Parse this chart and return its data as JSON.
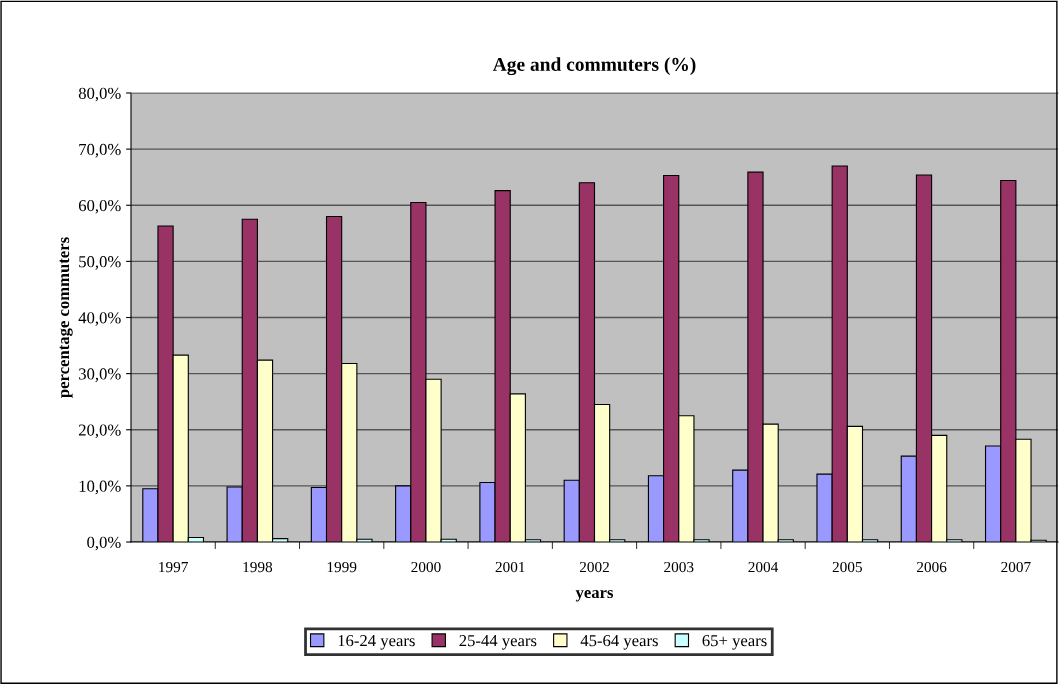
{
  "chart_data": {
    "type": "bar",
    "title": "Age and commuters (%)",
    "xlabel": "years",
    "ylabel": "percentage commuters",
    "categories": [
      "1997",
      "1998",
      "1999",
      "2000",
      "2001",
      "2002",
      "2003",
      "2004",
      "2005",
      "2006",
      "2007"
    ],
    "series": [
      {
        "name": "16-24 years",
        "color": "#9999ff",
        "values": [
          9.5,
          9.8,
          9.7,
          10.0,
          10.6,
          11.0,
          11.8,
          12.8,
          12.1,
          15.3,
          17.1
        ]
      },
      {
        "name": "25-44 years",
        "color": "#993366",
        "values": [
          56.3,
          57.5,
          58.0,
          60.5,
          62.6,
          64.0,
          65.3,
          65.9,
          67.0,
          65.4,
          64.4
        ]
      },
      {
        "name": "45-64 years",
        "color": "#ffffcc",
        "values": [
          33.3,
          32.4,
          31.8,
          29.0,
          26.4,
          24.5,
          22.5,
          21.0,
          20.6,
          19.0,
          18.3
        ]
      },
      {
        "name": "65+ years",
        "color": "#ccffff",
        "values": [
          0.8,
          0.6,
          0.5,
          0.5,
          0.4,
          0.4,
          0.4,
          0.4,
          0.4,
          0.4,
          0.3
        ]
      }
    ],
    "ylim": [
      0,
      80
    ],
    "yticks": [
      {
        "value": 0,
        "label": "0,0%"
      },
      {
        "value": 10,
        "label": "10,0%"
      },
      {
        "value": 20,
        "label": "20,0%"
      },
      {
        "value": 30,
        "label": "30,0%"
      },
      {
        "value": 40,
        "label": "40,0%"
      },
      {
        "value": 50,
        "label": "50,0%"
      },
      {
        "value": 60,
        "label": "60,0%"
      },
      {
        "value": 70,
        "label": "70,0%"
      },
      {
        "value": 80,
        "label": "80,0%"
      }
    ],
    "grid": "y",
    "legend": "bottom"
  }
}
